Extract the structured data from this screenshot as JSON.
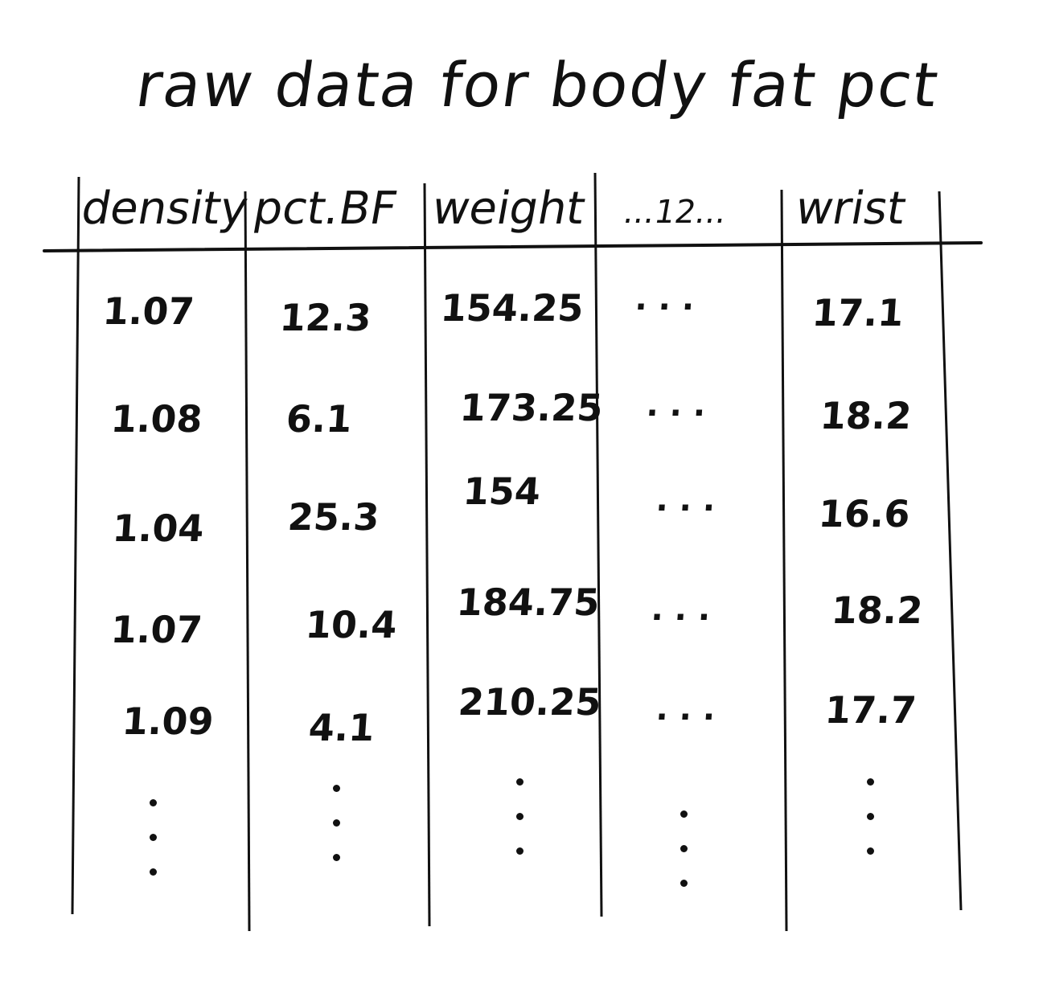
{
  "title": "raw data for body fat pct",
  "table": {
    "headers": [
      "density",
      "pct.BF",
      "weight",
      "...12...",
      "wrist"
    ],
    "rows": [
      [
        "1.07",
        "12.3",
        "154.25",
        "...",
        "17.1"
      ],
      [
        "1.08",
        "6.1",
        "173.25",
        "...",
        "18.2"
      ],
      [
        "1.04",
        "25.3",
        "154",
        "...",
        "16.6"
      ],
      [
        "1.07",
        "10.4",
        "184.75",
        "...",
        "18.2"
      ],
      [
        "1.09",
        "4.1",
        "210.25",
        "...",
        "17.7"
      ]
    ]
  }
}
